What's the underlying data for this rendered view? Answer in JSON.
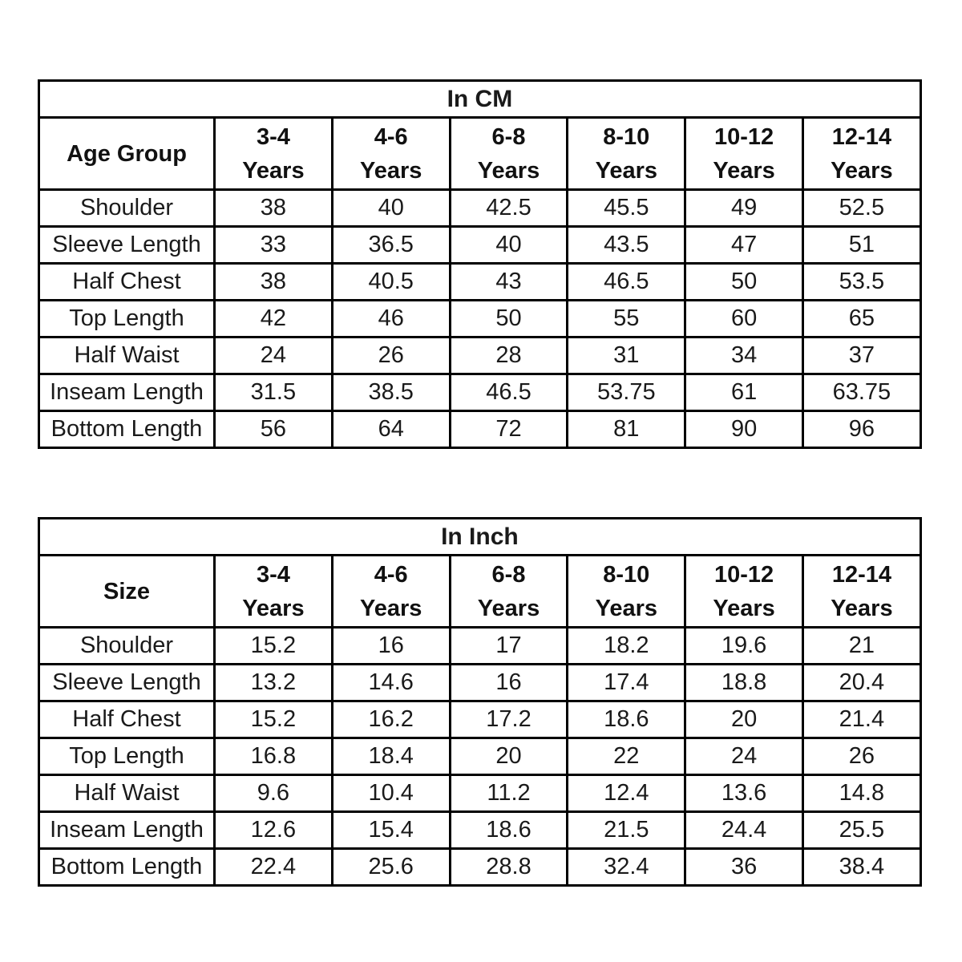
{
  "page": {
    "background_color": "#ffffff",
    "border_color": "#000000",
    "text_color": "#1a1a1a"
  },
  "tables": [
    {
      "title": "In CM",
      "corner_label": "Age Group",
      "columns": [
        {
          "range": "3-4",
          "unit": "Years"
        },
        {
          "range": "4-6",
          "unit": "Years"
        },
        {
          "range": "6-8",
          "unit": "Years"
        },
        {
          "range": "8-10",
          "unit": "Years"
        },
        {
          "range": "10-12",
          "unit": "Years"
        },
        {
          "range": "12-14",
          "unit": "Years"
        }
      ],
      "rows": [
        {
          "label": "Shoulder",
          "values": [
            "38",
            "40",
            "42.5",
            "45.5",
            "49",
            "52.5"
          ]
        },
        {
          "label": "Sleeve Length",
          "values": [
            "33",
            "36.5",
            "40",
            "43.5",
            "47",
            "51"
          ]
        },
        {
          "label": "Half Chest",
          "values": [
            "38",
            "40.5",
            "43",
            "46.5",
            "50",
            "53.5"
          ]
        },
        {
          "label": "Top Length",
          "values": [
            "42",
            "46",
            "50",
            "55",
            "60",
            "65"
          ]
        },
        {
          "label": "Half Waist",
          "values": [
            "24",
            "26",
            "28",
            "31",
            "34",
            "37"
          ]
        },
        {
          "label": "Inseam Length",
          "values": [
            "31.5",
            "38.5",
            "46.5",
            "53.75",
            "61",
            "63.75"
          ]
        },
        {
          "label": "Bottom Length",
          "values": [
            "56",
            "64",
            "72",
            "81",
            "90",
            "96"
          ]
        }
      ]
    },
    {
      "title": "In Inch",
      "corner_label": "Size",
      "columns": [
        {
          "range": "3-4",
          "unit": "Years"
        },
        {
          "range": "4-6",
          "unit": "Years"
        },
        {
          "range": "6-8",
          "unit": "Years"
        },
        {
          "range": "8-10",
          "unit": "Years"
        },
        {
          "range": "10-12",
          "unit": "Years"
        },
        {
          "range": "12-14",
          "unit": "Years"
        }
      ],
      "rows": [
        {
          "label": "Shoulder",
          "values": [
            "15.2",
            "16",
            "17",
            "18.2",
            "19.6",
            "21"
          ]
        },
        {
          "label": "Sleeve Length",
          "values": [
            "13.2",
            "14.6",
            "16",
            "17.4",
            "18.8",
            "20.4"
          ]
        },
        {
          "label": "Half Chest",
          "values": [
            "15.2",
            "16.2",
            "17.2",
            "18.6",
            "20",
            "21.4"
          ]
        },
        {
          "label": "Top Length",
          "values": [
            "16.8",
            "18.4",
            "20",
            "22",
            "24",
            "26"
          ]
        },
        {
          "label": "Half Waist",
          "values": [
            "9.6",
            "10.4",
            "11.2",
            "12.4",
            "13.6",
            "14.8"
          ]
        },
        {
          "label": "Inseam Length",
          "values": [
            "12.6",
            "15.4",
            "18.6",
            "21.5",
            "24.4",
            "25.5"
          ]
        },
        {
          "label": "Bottom Length",
          "values": [
            "22.4",
            "25.6",
            "28.8",
            "32.4",
            "36",
            "38.4"
          ]
        }
      ]
    }
  ],
  "chart_data": [
    {
      "type": "table",
      "title": "In CM",
      "columns": [
        "Age Group",
        "3-4 Years",
        "4-6 Years",
        "6-8 Years",
        "8-10 Years",
        "10-12 Years",
        "12-14 Years"
      ],
      "rows": [
        [
          "Shoulder",
          38,
          40,
          42.5,
          45.5,
          49,
          52.5
        ],
        [
          "Sleeve Length",
          33,
          36.5,
          40,
          43.5,
          47,
          51
        ],
        [
          "Half Chest",
          38,
          40.5,
          43,
          46.5,
          50,
          53.5
        ],
        [
          "Top Length",
          42,
          46,
          50,
          55,
          60,
          65
        ],
        [
          "Half Waist",
          24,
          26,
          28,
          31,
          34,
          37
        ],
        [
          "Inseam Length",
          31.5,
          38.5,
          46.5,
          53.75,
          61,
          63.75
        ],
        [
          "Bottom Length",
          56,
          64,
          72,
          81,
          90,
          96
        ]
      ]
    },
    {
      "type": "table",
      "title": "In Inch",
      "columns": [
        "Size",
        "3-4 Years",
        "4-6 Years",
        "6-8 Years",
        "8-10 Years",
        "10-12 Years",
        "12-14 Years"
      ],
      "rows": [
        [
          "Shoulder",
          15.2,
          16,
          17,
          18.2,
          19.6,
          21
        ],
        [
          "Sleeve Length",
          13.2,
          14.6,
          16,
          17.4,
          18.8,
          20.4
        ],
        [
          "Half Chest",
          15.2,
          16.2,
          17.2,
          18.6,
          20,
          21.4
        ],
        [
          "Top Length",
          16.8,
          18.4,
          20,
          22,
          24,
          26
        ],
        [
          "Half Waist",
          9.6,
          10.4,
          11.2,
          12.4,
          13.6,
          14.8
        ],
        [
          "Inseam Length",
          12.6,
          15.4,
          18.6,
          21.5,
          24.4,
          25.5
        ],
        [
          "Bottom Length",
          22.4,
          25.6,
          28.8,
          32.4,
          36,
          38.4
        ]
      ]
    }
  ]
}
